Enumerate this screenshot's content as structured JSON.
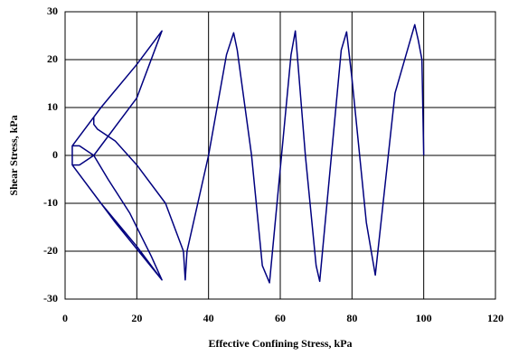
{
  "chart_data": {
    "type": "line",
    "xlabel": "Effective Confining Stress, kPa",
    "ylabel": "Shear Stress, kPa",
    "series": [
      {
        "color": "#00007f",
        "x": [
          100,
          99.5,
          98.5,
          97.5,
          92,
          86.5,
          84,
          80,
          78.5,
          77,
          71,
          70,
          67,
          64.2,
          63,
          57,
          55,
          52,
          48,
          47,
          45,
          40,
          34,
          33.5,
          33,
          28,
          20,
          14,
          9,
          8,
          8,
          4,
          2,
          4,
          8,
          4,
          2,
          10,
          20,
          27,
          24,
          18,
          12,
          8,
          14,
          20,
          27,
          20,
          10,
          2,
          2,
          14,
          27
        ],
        "values": [
          0,
          20,
          24,
          27.3,
          13,
          -25,
          -14,
          16,
          25.8,
          22,
          -26.3,
          -23,
          0,
          26,
          21,
          -26.6,
          -23,
          0,
          22,
          25.6,
          21,
          0,
          -20,
          -26,
          -20,
          -10,
          -2,
          3,
          5.5,
          6.5,
          8,
          4,
          2,
          2,
          0,
          -2,
          -2,
          -10,
          -19,
          -26,
          -21,
          -12,
          -5,
          0,
          6,
          12,
          26,
          19,
          10,
          2,
          -2,
          -14,
          -26
        ]
      }
    ],
    "xlim": [
      0,
      120
    ],
    "xticks": [
      0,
      20,
      40,
      60,
      80,
      100,
      120
    ],
    "ylim": [
      -30,
      30
    ],
    "yticks": [
      -30,
      -20,
      -10,
      0,
      10,
      20,
      30
    ],
    "grid": true
  }
}
